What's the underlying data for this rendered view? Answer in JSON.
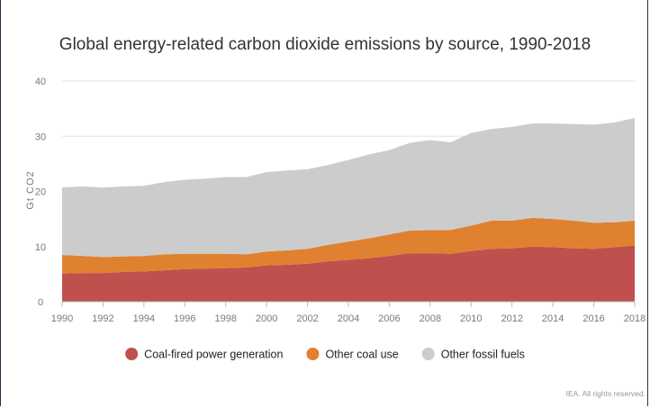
{
  "chart_data": {
    "type": "area",
    "stacked": true,
    "title": "Global energy-related carbon dioxide emissions by source, 1990-2018",
    "xlabel": "",
    "ylabel": "Gt CO2",
    "ylim": [
      0,
      40
    ],
    "yticks": [
      0,
      10,
      20,
      30,
      40
    ],
    "xticks": [
      1990,
      1992,
      1994,
      1996,
      1998,
      2000,
      2002,
      2004,
      2006,
      2008,
      2010,
      2012,
      2014,
      2016,
      2018
    ],
    "grid": true,
    "legend_position": "bottom",
    "x": [
      1990,
      1991,
      1992,
      1993,
      1994,
      1995,
      1996,
      1997,
      1998,
      1999,
      2000,
      2001,
      2002,
      2003,
      2004,
      2005,
      2006,
      2007,
      2008,
      2009,
      2010,
      2011,
      2012,
      2013,
      2014,
      2015,
      2016,
      2017,
      2018
    ],
    "series": [
      {
        "name": "Coal-fired power generation",
        "color": "#c0504d",
        "values": [
          5.1,
          5.2,
          5.2,
          5.4,
          5.5,
          5.7,
          5.9,
          6.0,
          6.1,
          6.2,
          6.6,
          6.7,
          6.9,
          7.3,
          7.6,
          7.9,
          8.3,
          8.8,
          8.8,
          8.7,
          9.2,
          9.6,
          9.7,
          10.0,
          9.9,
          9.7,
          9.6,
          9.9,
          10.2
        ]
      },
      {
        "name": "Other coal use",
        "color": "#e0812f",
        "values": [
          3.4,
          3.1,
          2.9,
          2.8,
          2.8,
          2.9,
          2.8,
          2.7,
          2.6,
          2.4,
          2.5,
          2.6,
          2.7,
          3.0,
          3.3,
          3.6,
          3.9,
          4.1,
          4.2,
          4.3,
          4.6,
          5.1,
          5.0,
          5.2,
          5.1,
          5.0,
          4.7,
          4.5,
          4.5
        ]
      },
      {
        "name": "Other fossil fuels",
        "color": "#cccccc",
        "values": [
          12.2,
          12.6,
          12.6,
          12.7,
          12.7,
          13.1,
          13.4,
          13.6,
          13.9,
          14.0,
          14.4,
          14.5,
          14.4,
          14.5,
          14.8,
          15.2,
          15.3,
          15.9,
          16.3,
          15.9,
          16.8,
          16.6,
          17.0,
          17.1,
          17.3,
          17.5,
          17.8,
          18.1,
          18.6
        ]
      }
    ]
  },
  "credit": "IEA. All rights reserved."
}
